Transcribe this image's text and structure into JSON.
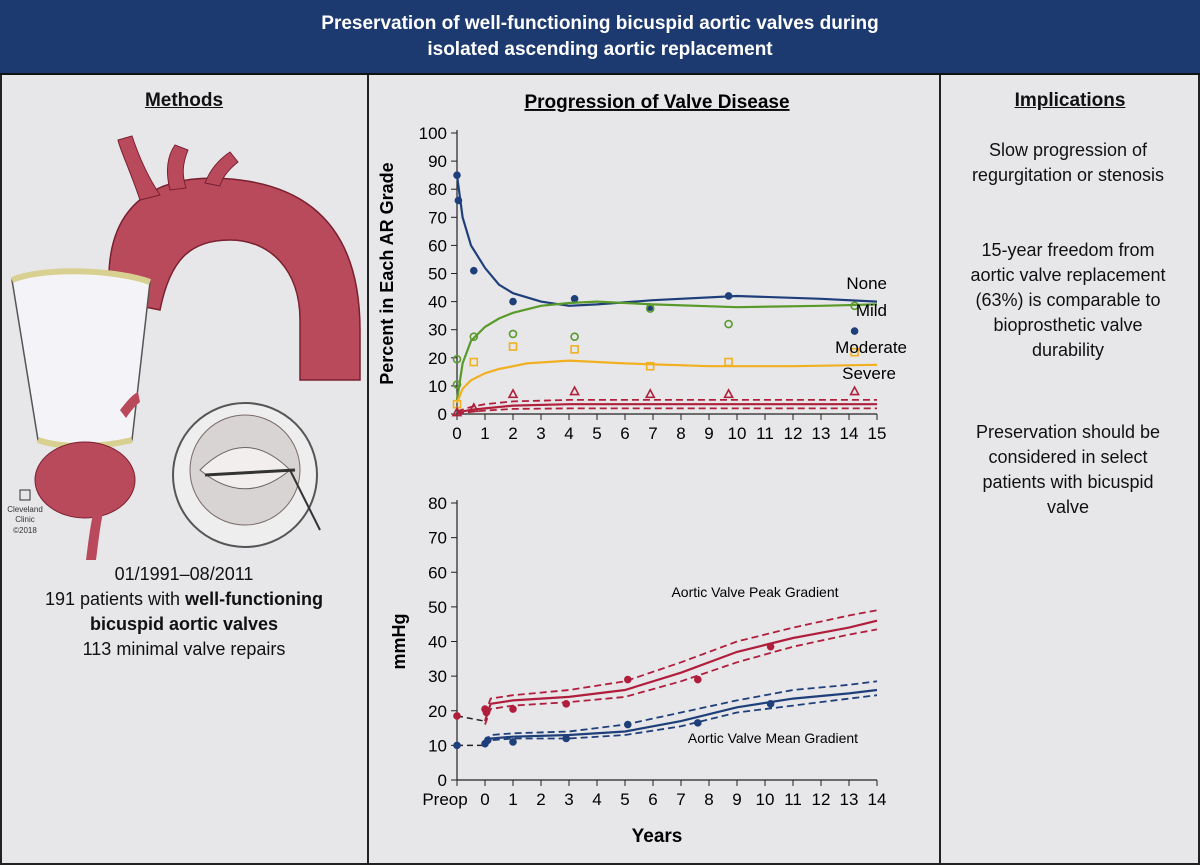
{
  "header": {
    "title": "Preservation of well-functioning bicuspid aortic valves during isolated ascending aortic replacement"
  },
  "methods": {
    "heading": "Methods",
    "illustration_credit": [
      "Cleveland",
      "Clinic",
      "©2018"
    ],
    "dates": "01/1991–08/2011",
    "patients_prefix": "191 patients with",
    "patients_bold": "well-functioning bicuspid aortic valves",
    "repairs": "113 minimal valve repairs"
  },
  "implications": {
    "heading": "Implications",
    "points": [
      "Slow progression of regurgitation or stenosis",
      "15-year freedom from aortic valve replacement (63%) is comparable to bioprosthetic valve durability",
      "Preservation should be considered in select patients with bicuspid valve"
    ]
  },
  "chart_data": [
    {
      "type": "scatter",
      "title": "Progression of Valve Disease",
      "ylabel": "Percent in Each AR Grade",
      "xlim": [
        0,
        15
      ],
      "ylim": [
        0,
        100
      ],
      "xticks": [
        0,
        1,
        2,
        3,
        4,
        5,
        6,
        7,
        8,
        9,
        10,
        11,
        12,
        13,
        14,
        15
      ],
      "yticks": [
        0,
        10,
        20,
        30,
        40,
        50,
        60,
        70,
        80,
        90,
        100
      ],
      "series": [
        {
          "name": "None",
          "color": "#1f3f7a",
          "marker": "dot",
          "x": [
            0,
            0.05,
            0.6,
            2,
            4.2,
            6.9,
            9.7,
            14.2
          ],
          "values": [
            85,
            76,
            51,
            40,
            41,
            38,
            42,
            29.5
          ],
          "fit": {
            "x": [
              0,
              0.2,
              0.5,
              1,
              1.5,
              2,
              3,
              4,
              5,
              7,
              10,
              13,
              15
            ],
            "values": [
              85,
              70,
              60,
              52,
              46,
              43,
              40,
              38.5,
              39,
              40.5,
              42,
              41,
              40
            ]
          }
        },
        {
          "name": "Mild",
          "color": "#5a9a2a",
          "marker": "ring",
          "x": [
            0,
            0,
            0.6,
            2,
            4.2,
            6.9,
            9.7,
            14.2
          ],
          "values": [
            19.5,
            10.5,
            27.5,
            28.5,
            27.5,
            37.5,
            32,
            38.5
          ],
          "fit": {
            "x": [
              0,
              0.2,
              0.5,
              1,
              1.5,
              2,
              3,
              4,
              5,
              7,
              10,
              13,
              15
            ],
            "values": [
              5,
              18,
              26,
              31,
              34,
              36,
              38.5,
              39.5,
              40,
              39,
              38,
              38.5,
              39
            ]
          }
        },
        {
          "name": "Moderate",
          "color": "#f0b020",
          "marker": "square",
          "x": [
            0,
            0.6,
            2,
            4.2,
            6.9,
            9.7,
            14.2
          ],
          "values": [
            3.5,
            18.5,
            24,
            23,
            17,
            18.5,
            22
          ],
          "fit": {
            "x": [
              0,
              0.2,
              0.5,
              1,
              1.5,
              2.5,
              4,
              6,
              9,
              12,
              15
            ],
            "values": [
              4,
              9,
              12,
              14.5,
              16,
              18,
              19,
              18,
              17,
              17,
              17.5
            ]
          }
        },
        {
          "name": "Severe",
          "color": "#b0203a",
          "marker": "triangle",
          "x": [
            0,
            0.6,
            2,
            4.2,
            6.9,
            9.7,
            14.2
          ],
          "values": [
            0.5,
            2,
            7,
            8,
            7,
            7,
            8
          ],
          "fit": {
            "x": [
              0,
              0.5,
              1,
              2,
              4,
              7,
              10,
              15
            ],
            "values": [
              0.5,
              1.5,
              2,
              3,
              3.5,
              3.5,
              3.5,
              3.5
            ]
          },
          "ci_upper": {
            "x": [
              0,
              0.5,
              1,
              2,
              4,
              7,
              10,
              15
            ],
            "values": [
              1,
              2.5,
              3.5,
              4.5,
              5,
              5,
              5,
              5
            ]
          },
          "ci_lower": {
            "x": [
              0,
              0.5,
              1,
              2,
              4,
              7,
              10,
              15
            ],
            "values": [
              0,
              0.8,
              1.2,
              1.8,
              2,
              2,
              2,
              2
            ]
          }
        }
      ]
    },
    {
      "type": "scatter",
      "xlabel": "Years",
      "ylabel": "mmHg",
      "xlim": [
        -1,
        14
      ],
      "ylim": [
        0,
        80
      ],
      "xticks": [
        {
          "value": -1,
          "label": "Preop"
        },
        0,
        1,
        2,
        3,
        4,
        5,
        6,
        7,
        8,
        9,
        10,
        11,
        12,
        13,
        14
      ],
      "yticks": [
        0,
        10,
        20,
        30,
        40,
        50,
        60,
        70,
        80
      ],
      "series": [
        {
          "name": "Aortic Valve Peak Gradient",
          "color": "#b01e3c",
          "marker": "dot",
          "x": [
            -1,
            0,
            0.05,
            1,
            2.9,
            5.1,
            7.6,
            10.2
          ],
          "values": [
            18.5,
            20.5,
            19.5,
            20.5,
            22,
            29,
            29,
            38.5
          ],
          "fit": {
            "x": [
              0,
              0.2,
              1,
              3,
              5,
              7,
              9,
              11,
              13,
              14
            ],
            "values": [
              17,
              22,
              23,
              24,
              26,
              31,
              37,
              41,
              44,
              46
            ]
          },
          "ci_upper": {
            "x": [
              0,
              0.2,
              1,
              3,
              5,
              7,
              9,
              11,
              13,
              14
            ],
            "values": [
              19,
              23.5,
              24.5,
              26,
              28.5,
              34,
              40,
              44,
              47.5,
              49
            ]
          },
          "ci_lower": {
            "x": [
              0,
              0.2,
              1,
              3,
              5,
              7,
              9,
              11,
              13,
              14
            ],
            "values": [
              16,
              20.5,
              21.5,
              22.5,
              24,
              28.5,
              34,
              38.5,
              42,
              43.5
            ]
          }
        },
        {
          "name": "Aortic Valve Mean Gradient",
          "color": "#1f3f7a",
          "marker": "dot",
          "x": [
            -1,
            0,
            0.1,
            1,
            2.9,
            5.1,
            7.6,
            10.2
          ],
          "values": [
            10,
            10.5,
            11.5,
            11,
            12,
            16,
            16.5,
            22
          ],
          "fit": {
            "x": [
              0,
              0.2,
              1,
              3,
              5,
              7,
              9,
              11,
              13,
              14
            ],
            "values": [
              10,
              12,
              12.5,
              13,
              14,
              17,
              21,
              23.5,
              25,
              26
            ]
          },
          "ci_upper": {
            "x": [
              0,
              0.2,
              1,
              3,
              5,
              7,
              9,
              11,
              13,
              14
            ],
            "values": [
              11,
              13,
              13.5,
              14,
              16,
              19.5,
              23,
              26,
              27.5,
              28.5
            ]
          },
          "ci_lower": {
            "x": [
              0,
              0.2,
              1,
              3,
              5,
              7,
              9,
              11,
              13,
              14
            ],
            "values": [
              9.5,
              11.5,
              12,
              12,
              13,
              15.5,
              19.5,
              21.5,
              23.5,
              24.5
            ]
          }
        }
      ]
    }
  ]
}
